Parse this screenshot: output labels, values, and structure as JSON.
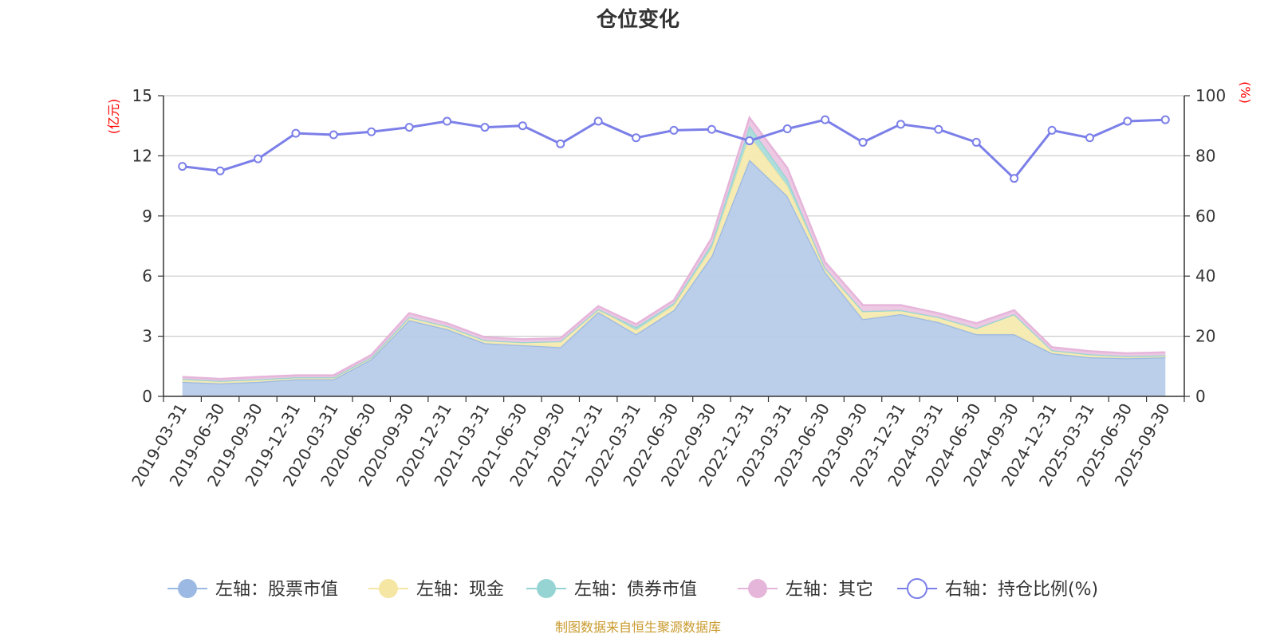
{
  "chart_data": {
    "type": "area",
    "title": "仓位变化",
    "left_axis_unit": "(亿元)",
    "right_axis_unit": "(%)",
    "left_ylim": [
      0,
      15
    ],
    "left_ticks": [
      "0",
      "3",
      "6",
      "9",
      "12",
      "15"
    ],
    "right_ylim": [
      0,
      100
    ],
    "right_ticks": [
      "0",
      "20",
      "40",
      "60",
      "80",
      "100"
    ],
    "categories": [
      "2019-03-31",
      "2019-06-30",
      "2019-09-30",
      "2019-12-31",
      "2020-03-31",
      "2020-06-30",
      "2020-09-30",
      "2020-12-31",
      "2021-03-31",
      "2021-06-30",
      "2021-09-30",
      "2021-12-31",
      "2022-03-31",
      "2022-06-30",
      "2022-09-30",
      "2022-12-31",
      "2023-03-31",
      "2023-06-30",
      "2023-09-30",
      "2023-12-31",
      "2024-03-31",
      "2024-06-30",
      "2024-09-30",
      "2024-12-31",
      "2025-03-31",
      "2025-06-30",
      "2025-09-30"
    ],
    "series": [
      {
        "name": "左轴：股票市值",
        "axis": "left",
        "stack": true,
        "color": "#9bb9e2",
        "fill": "#b7cce9",
        "values": [
          0.72,
          0.65,
          0.72,
          0.85,
          0.85,
          1.85,
          3.8,
          3.35,
          2.65,
          2.55,
          2.45,
          4.2,
          3.1,
          4.3,
          7.0,
          11.8,
          10.0,
          6.2,
          3.85,
          4.1,
          3.7,
          3.1,
          3.1,
          2.15,
          1.95,
          1.9,
          1.95
        ]
      },
      {
        "name": "左轴：现金",
        "axis": "left",
        "stack": true,
        "color": "#f5e6a3",
        "fill": "#f7eab0",
        "values": [
          0.15,
          0.12,
          0.13,
          0.1,
          0.1,
          0.1,
          0.15,
          0.15,
          0.15,
          0.15,
          0.3,
          0.15,
          0.2,
          0.25,
          0.4,
          1.2,
          0.5,
          0.2,
          0.4,
          0.2,
          0.25,
          0.3,
          1.0,
          0.15,
          0.15,
          0.1,
          0.1
        ]
      },
      {
        "name": "左轴：债券市值",
        "axis": "left",
        "stack": true,
        "color": "#96d4d4",
        "fill": "#a9dcd9",
        "values": [
          0,
          0,
          0,
          0,
          0,
          0,
          0,
          0,
          0,
          0,
          0,
          0,
          0.15,
          0.1,
          0.2,
          0.5,
          0.35,
          0,
          0,
          0,
          0,
          0,
          0,
          0,
          0,
          0,
          0
        ]
      },
      {
        "name": "左轴：其它",
        "axis": "left",
        "stack": true,
        "color": "#e6b5da",
        "fill": "#ecc6e2",
        "values": [
          0.1,
          0.1,
          0.12,
          0.1,
          0.1,
          0.12,
          0.2,
          0.15,
          0.15,
          0.15,
          0.15,
          0.15,
          0.15,
          0.15,
          0.3,
          0.4,
          0.55,
          0.3,
          0.3,
          0.25,
          0.2,
          0.25,
          0.2,
          0.15,
          0.15,
          0.15,
          0.15
        ]
      },
      {
        "name": "右轴：持仓比例(%)",
        "axis": "right",
        "stack": false,
        "color": "#7b7fe8",
        "values": [
          76.5,
          75,
          79,
          87.5,
          87,
          88,
          89.5,
          91.5,
          89.5,
          90,
          84,
          91.5,
          86,
          88.5,
          88.8,
          85,
          89,
          92,
          84.5,
          90.5,
          88.8,
          84.5,
          72.5,
          88.5,
          86,
          91.5,
          92
        ]
      }
    ],
    "legend": [
      "左轴：股票市值",
      "左轴：现金",
      "左轴：债券市值",
      "左轴：其它",
      "右轴：持仓比例(%)"
    ],
    "legend_position": "bottom",
    "grid": true
  },
  "footer": {
    "source": "制图数据来自恒生聚源数据库"
  }
}
